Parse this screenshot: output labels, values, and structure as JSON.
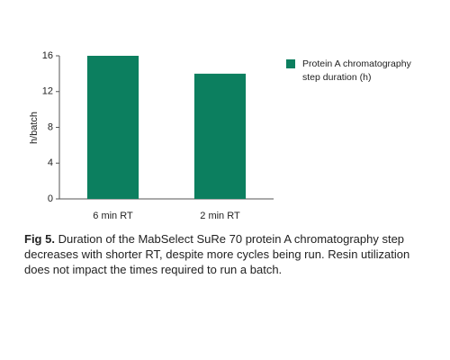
{
  "chart_data": {
    "type": "bar",
    "y_label": "h/batch",
    "categories": [
      "6 min RT",
      "2 min RT"
    ],
    "series": [
      {
        "name": "Protein A chromatography step duration (h)",
        "color": "#0c7f5f",
        "values": [
          16,
          14
        ]
      }
    ],
    "ylim": [
      0,
      16
    ],
    "yticks": [
      0,
      4,
      8,
      12,
      16
    ],
    "legend": "right",
    "caption": {
      "label": "Fig 5.",
      "text": "Duration of the MabSelect SuRe 70 protein A chromatography step decreases with shorter RT, despite more cycles being run. Resin utilization does not impact the times required to run a batch."
    }
  }
}
